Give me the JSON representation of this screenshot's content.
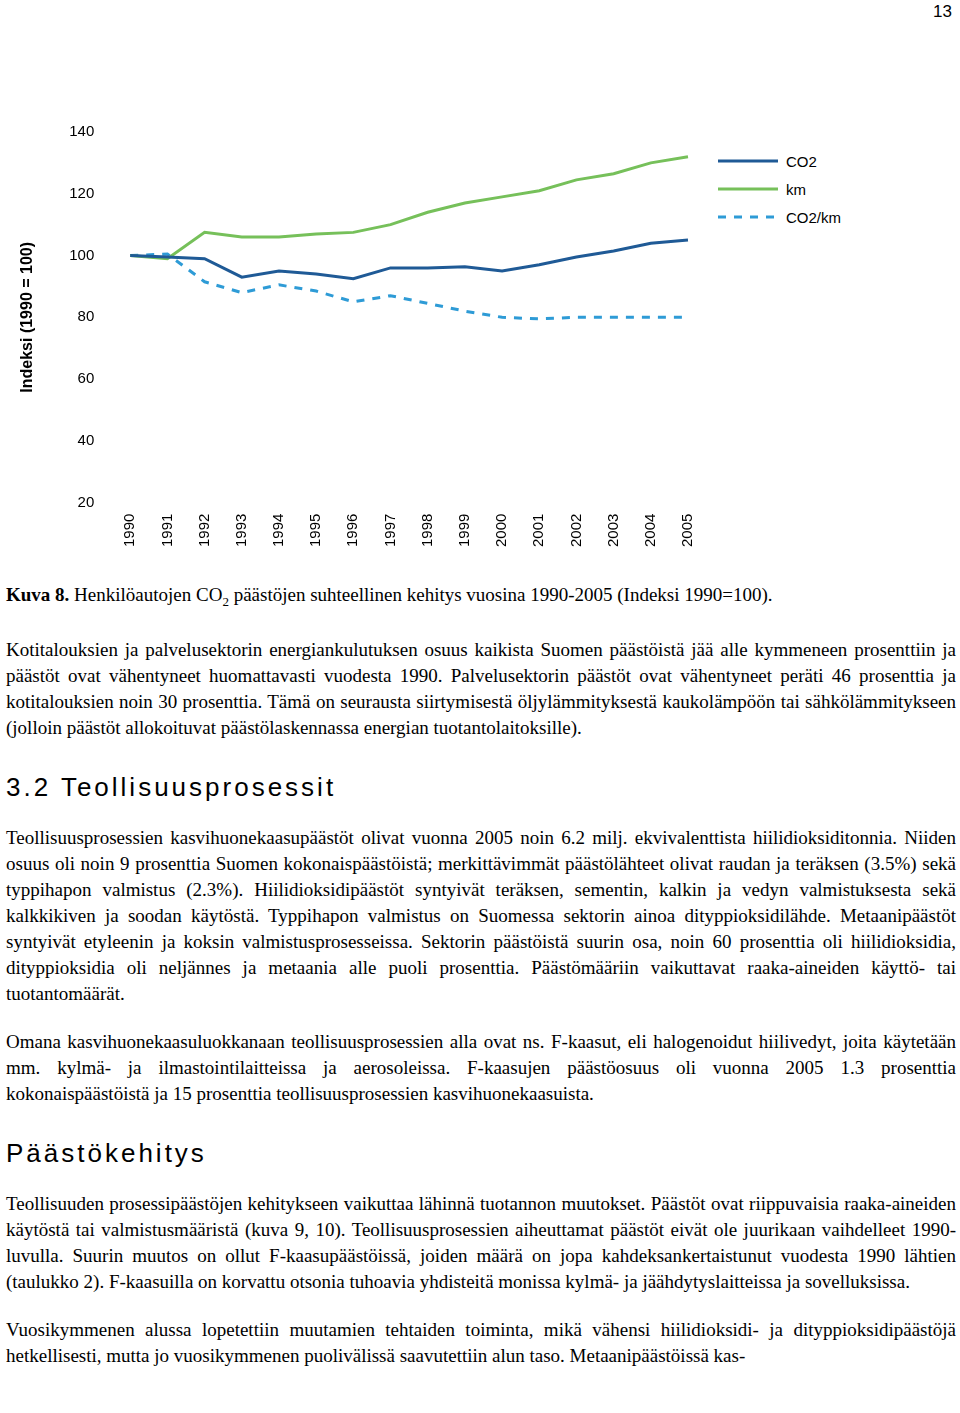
{
  "page_number": "13",
  "chart_data": {
    "type": "line",
    "y_label": "Indeksi (1990 = 100)",
    "categories": [
      "1990",
      "1991",
      "1992",
      "1993",
      "1994",
      "1995",
      "1996",
      "1997",
      "1998",
      "1999",
      "2000",
      "2001",
      "2002",
      "2003",
      "2004",
      "2005"
    ],
    "series": [
      {
        "name": "CO2",
        "color": "#1f5a96",
        "line_style": "solid",
        "values": [
          100,
          99.5,
          99,
          93,
          95,
          94,
          92.5,
          96,
          96,
          96.4,
          95,
          97,
          99.5,
          101.5,
          104,
          105
        ]
      },
      {
        "name": "km",
        "color": "#76c05a",
        "line_style": "solid",
        "values": [
          100,
          99,
          107.5,
          106,
          106,
          107,
          107.5,
          110,
          114,
          117,
          119,
          121,
          124.5,
          126.5,
          130,
          132
        ]
      },
      {
        "name": "CO2/km",
        "color": "#2e9bd6",
        "line_style": "dashed",
        "values": [
          100,
          100.5,
          91.5,
          88,
          90.5,
          88.5,
          85,
          87,
          84.5,
          82,
          80,
          79.5,
          80,
          80,
          80,
          80
        ]
      }
    ],
    "ylim": [
      20,
      140
    ],
    "yticks": [
      20,
      40,
      60,
      80,
      100,
      120,
      140
    ],
    "grid": false,
    "legend": "right"
  },
  "caption": {
    "label": "Kuva 8.",
    "text_before": " Henkilöautojen CO",
    "subscript": "2",
    "text_after": " päästöjen suhteellinen kehitys vuosina 1990-2005 (Indeksi 1990=100)."
  },
  "sections": [
    {
      "paragraphs": [
        "Kotitalouksien ja palvelusektorin energiankulutuksen osuus kaikista Suomen päästöistä jää alle kymmeneen prosenttiin ja päästöt ovat vähentyneet huomattavasti vuodesta 1990. Palvelusektorin päästöt ovat vähentyneet peräti 46 prosenttia ja kotitalouksien noin 30 prosenttia. Tämä on seurausta siirtymisestä öljylämmityksestä kaukolämpöön tai sähkölämmitykseen (jolloin päästöt allokoituvat päästölaskennassa energian tuotantolaitoksille)."
      ]
    },
    {
      "heading": "3.2 Teollisuusprosessit",
      "paragraphs": [
        "Teollisuusprosessien kasvihuonekaasupäästöt olivat vuonna 2005 noin 6.2 milj. ekvivalenttista hiilidioksiditonnia. Niiden osuus oli noin 9 prosenttia Suomen kokonaispäästöistä; merkittävimmät päästölähteet olivat raudan ja teräksen (3.5%) sekä typpihapon valmistus (2.3%). Hiilidioksidipäästöt syntyivät teräksen, sementin, kalkin ja vedyn valmistuksesta sekä kalkkikiven ja soodan käytöstä. Typpihapon valmistus on Suomessa sektorin ainoa dityppioksidilähde. Metaanipäästöt syntyivät etyleenin ja koksin valmistusprosesseissa. Sektorin päästöistä suurin osa, noin 60 prosenttia oli hiilidioksidia, dityppioksidia oli neljännes ja metaania alle puoli prosenttia. Päästömääriin vaikuttavat raaka-aineiden käyttö- tai tuotantomäärät.",
        "Omana kasvihuonekaasuluokkanaan teollisuusprosessien alla ovat ns. F-kaasut, eli halogenoidut hiilivedyt, joita käytetään mm. kylmä- ja ilmastointilaitteissa ja aerosoleissa. F-kaasujen päästöosuus oli vuonna 2005 1.3 prosenttia kokonaispäästöistä ja 15 prosenttia teollisuusprosessien kasvihuonekaasuista."
      ]
    },
    {
      "heading": "Päästökehitys",
      "paragraphs": [
        "Teollisuuden prosessipäästöjen kehitykseen vaikuttaa lähinnä tuotannon muutokset. Päästöt ovat riippuvaisia raaka-aineiden käytöstä tai valmistusmääristä (kuva 9, 10). Teollisuusprosessien aiheuttamat päästöt eivät ole juurikaan vaihdelleet 1990-luvulla. Suurin muutos on ollut F-kaasupäästöissä, joiden määrä on jopa kahdeksankertaistunut vuodesta 1990 lähtien (taulukko 2). F-kaasuilla on korvattu otsonia tuhoavia yhdisteitä monissa kylmä- ja jäähdytyslaitteissa ja sovelluksissa.",
        "Vuosikymmenen alussa lopetettiin muutamien tehtaiden toiminta, mikä vähensi hiilidioksidi- ja dityppioksidipäästöjä hetkellisesti, mutta jo vuosikymmenen puolivälissä saavutettiin alun taso. Metaanipäästöissä kas-"
      ]
    }
  ]
}
